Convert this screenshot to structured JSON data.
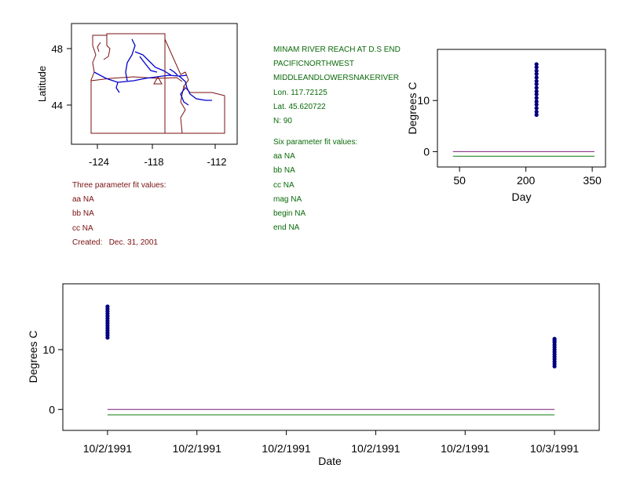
{
  "map": {
    "ylabel": "Latitude",
    "yticks": [
      "48",
      "44"
    ],
    "xticks": [
      "-124",
      "-118",
      "-112"
    ],
    "station_marker": "triangle-icon"
  },
  "station": {
    "lines": [
      "MINAM RIVER REACH AT D.S END",
      "PACIFICNORTHWEST",
      "MIDDLEANDLOWERSNAKERIVER",
      "Lon. 117.72125",
      "Lat. 45.620722",
      "N: 90"
    ],
    "six_param": [
      "Six parameter fit values:",
      "aa NA",
      "bb NA",
      "cc NA",
      "mag NA",
      "begin NA",
      "end NA"
    ]
  },
  "three_param": [
    "Three parameter fit values:",
    "aa NA",
    "bb NA",
    "cc NA",
    "Created:   Dec. 31, 2001"
  ],
  "colors": {
    "data": "#000080",
    "fit_purple": "#7a1f7a",
    "fit_green": "#0a7a0a",
    "text_red": "#7a1010",
    "text_green": "#0a6a0a"
  },
  "chart_data": [
    {
      "type": "scatter",
      "xlabel": "Day",
      "ylabel": "Degrees C",
      "xticks": [
        50,
        200,
        350
      ],
      "yticks": [
        0,
        10
      ],
      "xlim": [
        0,
        380
      ],
      "ylim": [
        -3,
        20
      ],
      "series": [
        {
          "x": [
            224,
            224,
            224,
            224,
            224,
            224,
            224,
            224,
            224,
            224,
            224,
            224,
            224,
            224,
            224,
            224
          ],
          "y": [
            7.2,
            7.8,
            8.5,
            9.2,
            9.8,
            10.5,
            11.2,
            11.8,
            12.5,
            13.2,
            13.8,
            14.5,
            15.2,
            15.8,
            16.5,
            17.1
          ]
        }
      ],
      "lines": [
        {
          "color": "purple",
          "x": [
            35,
            355
          ],
          "y": [
            0,
            0
          ]
        },
        {
          "color": "green",
          "x": [
            35,
            355
          ],
          "y": [
            -0.9,
            -0.9
          ]
        }
      ]
    },
    {
      "type": "scatter",
      "xlabel": "Date",
      "ylabel": "Degrees C",
      "xtick_labels": [
        "10/2/1991",
        "10/2/1991",
        "10/2/1991",
        "10/2/1991",
        "10/2/1991",
        "10/3/1991"
      ],
      "yticks": [
        0,
        10
      ],
      "xlim": [
        -0.1,
        1.1
      ],
      "ylim": [
        -3.5,
        21
      ],
      "series": [
        {
          "x": [
            0,
            0,
            0,
            0,
            0,
            0,
            0,
            0,
            0,
            0,
            0,
            0,
            0,
            0
          ],
          "y": [
            12.0,
            12.4,
            12.8,
            13.2,
            13.6,
            14.0,
            14.4,
            14.8,
            15.2,
            15.6,
            16.0,
            16.4,
            16.8,
            17.2
          ]
        },
        {
          "x": [
            1,
            1,
            1,
            1,
            1,
            1,
            1,
            1,
            1,
            1,
            1,
            1,
            1
          ],
          "y": [
            7.2,
            7.6,
            8.0,
            8.4,
            8.8,
            9.2,
            9.6,
            10.0,
            10.4,
            10.8,
            11.2,
            11.5,
            11.8
          ]
        }
      ],
      "lines": [
        {
          "color": "purple",
          "x": [
            0,
            1
          ],
          "y": [
            0,
            0
          ]
        },
        {
          "color": "green",
          "x": [
            0,
            1
          ],
          "y": [
            -0.9,
            -0.9
          ]
        }
      ]
    }
  ]
}
